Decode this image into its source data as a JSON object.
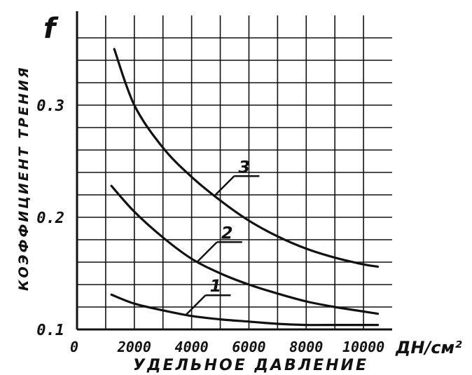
{
  "chart_data": {
    "type": "line",
    "title": "",
    "y_symbol": "f",
    "ylabel": "КОЭФФИЦИЕНТ ТРЕНИЯ",
    "xlabel": "УДЕЛЬНОЕ ДАВЛЕНИЕ",
    "x_unit": "ДН/см²",
    "xlim": [
      0,
      11000
    ],
    "ylim": [
      0.1,
      0.36
    ],
    "x_ticks": [
      {
        "value": 0,
        "label": "0"
      },
      {
        "value": 2000,
        "label": "2000"
      },
      {
        "value": 4000,
        "label": "4000"
      },
      {
        "value": 6000,
        "label": "6000"
      },
      {
        "value": 8000,
        "label": "8000"
      },
      {
        "value": 10000,
        "label": "10000"
      }
    ],
    "y_ticks": [
      {
        "value": 0.1,
        "label": "0.1"
      },
      {
        "value": 0.2,
        "label": "0.2"
      },
      {
        "value": 0.3,
        "label": "0.3"
      }
    ],
    "grid": true,
    "color": "#111111",
    "series": [
      {
        "name": "1",
        "x": [
          1200,
          2000,
          3000,
          4000,
          5000,
          6000,
          7000,
          8000,
          9000,
          10000,
          10500
        ],
        "y": [
          0.131,
          0.123,
          0.117,
          0.112,
          0.109,
          0.107,
          0.105,
          0.104,
          0.104,
          0.104,
          0.104
        ],
        "label_at": 3800
      },
      {
        "name": "2",
        "x": [
          1200,
          2000,
          3000,
          4000,
          5000,
          6000,
          7000,
          8000,
          9000,
          10000,
          10500
        ],
        "y": [
          0.228,
          0.205,
          0.182,
          0.163,
          0.15,
          0.14,
          0.132,
          0.125,
          0.12,
          0.116,
          0.114
        ],
        "label_at": 4200
      },
      {
        "name": "3",
        "x": [
          1300,
          2000,
          3000,
          4000,
          5000,
          6000,
          7000,
          8000,
          9000,
          10000,
          10500
        ],
        "y": [
          0.35,
          0.3,
          0.262,
          0.236,
          0.215,
          0.197,
          0.183,
          0.172,
          0.164,
          0.158,
          0.156
        ],
        "label_at": 4800
      }
    ]
  }
}
